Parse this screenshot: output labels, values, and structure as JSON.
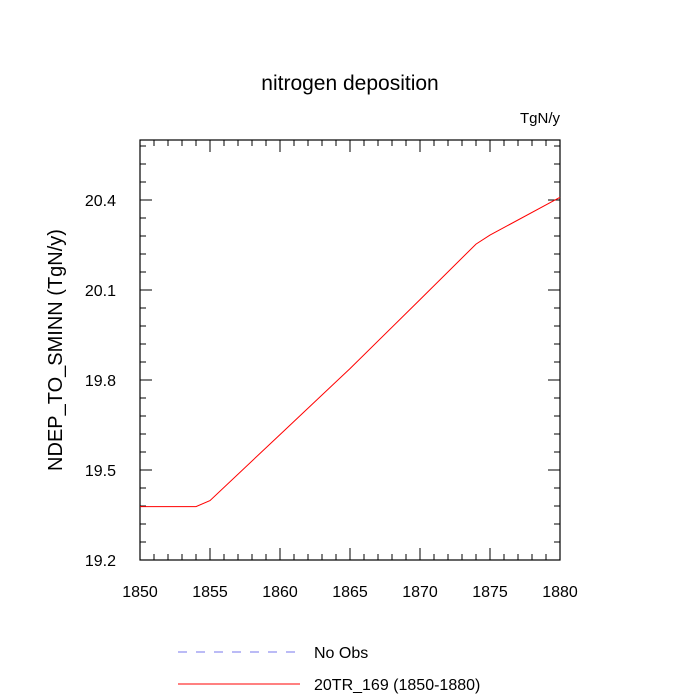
{
  "chart_data": {
    "type": "line",
    "title": "nitrogen deposition",
    "units_label": "TgN/y",
    "xlabel": "",
    "ylabel": "NDEP_TO_SMINN  (TgN/y)",
    "xlim": [
      1850,
      1880
    ],
    "ylim": [
      19.2,
      20.6
    ],
    "x_ticks": [
      1850,
      1855,
      1860,
      1865,
      1870,
      1875,
      1880
    ],
    "x_tick_labels": [
      "1850",
      "1855",
      "1860",
      "1865",
      "1870",
      "1875",
      "1880"
    ],
    "x_minor_step": 1,
    "y_ticks": [
      19.2,
      19.5,
      19.8,
      20.1,
      20.4
    ],
    "y_tick_labels": [
      "19.2",
      "19.5",
      "19.8",
      "20.1",
      "20.4"
    ],
    "y_minor_step": 0.06,
    "grid": false,
    "legend_position": "bottom",
    "series": [
      {
        "name": "No Obs",
        "color": "#7777ee",
        "style": "dashed",
        "x": [],
        "values": []
      },
      {
        "name": "20TR_169 (1850-1880)",
        "color": "#ff0000",
        "style": "solid",
        "x": [
          1850,
          1854,
          1855,
          1860,
          1865,
          1870,
          1874,
          1875,
          1880
        ],
        "values": [
          19.378,
          19.378,
          19.398,
          19.618,
          19.838,
          20.068,
          20.253,
          20.283,
          20.409
        ]
      }
    ]
  }
}
